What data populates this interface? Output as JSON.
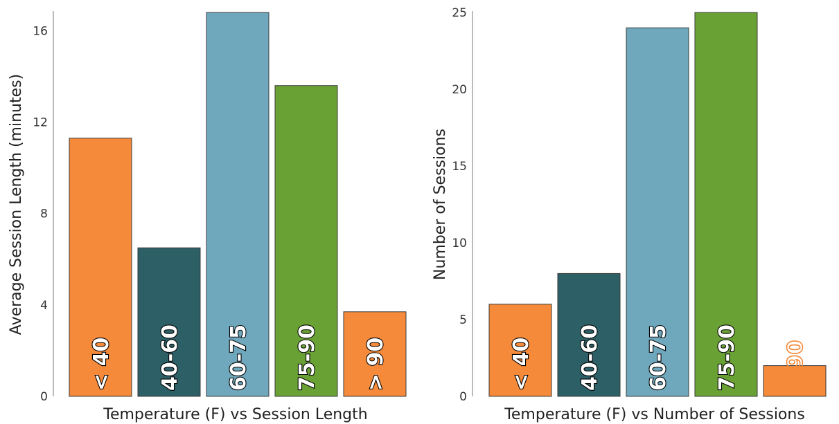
{
  "chart_data": [
    {
      "type": "bar",
      "categories": [
        "< 40",
        "40-60",
        "60-75",
        "75-90",
        "> 90"
      ],
      "values": [
        11.3,
        6.5,
        16.8,
        13.6,
        3.7
      ],
      "colors": [
        "#f58a3a",
        "#2c5f66",
        "#6fa8bc",
        "#6aa135",
        "#f58a3a"
      ],
      "xlabel": "Temperature (F) vs Session Length",
      "ylabel": "Average Session Length (minutes)",
      "ylim": [
        0,
        16.8
      ],
      "yticks": [
        0,
        4,
        8,
        12,
        16
      ],
      "grid": false
    },
    {
      "type": "bar",
      "categories": [
        "< 40",
        "40-60",
        "60-75",
        "75-90",
        "> 90"
      ],
      "values": [
        6,
        8,
        24,
        25,
        2
      ],
      "colors": [
        "#f58a3a",
        "#2c5f66",
        "#6fa8bc",
        "#6aa135",
        "#f58a3a"
      ],
      "xlabel": "Temperature (F) vs Number of Sessions",
      "ylabel": "Number of Sessions",
      "ylim": [
        0,
        25
      ],
      "yticks": [
        0,
        5,
        10,
        15,
        20,
        25
      ],
      "grid": false
    }
  ]
}
